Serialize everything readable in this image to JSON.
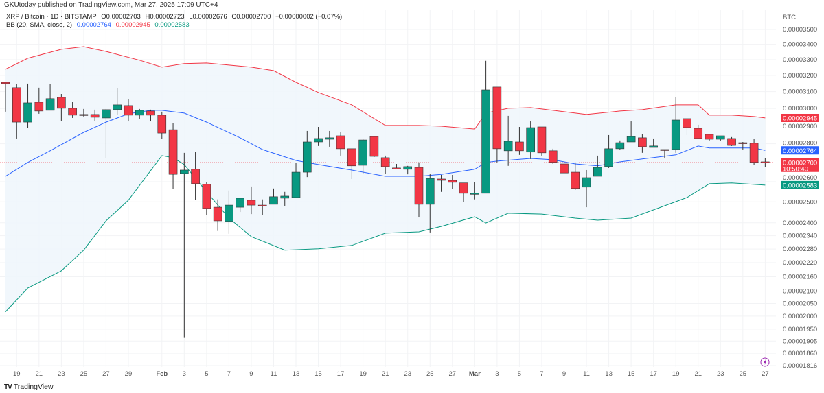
{
  "publisher": "GKUtoday published on TradingView.com, Mar 27, 2025 17:09 UTC+4",
  "legend": {
    "symbol": "XRP / Bitcoin · 1D · BITSTAMP",
    "open": "O0.00002703",
    "high": "H0.00002723",
    "low": "L0.00002676",
    "close": "C0.00002700",
    "change": "−0.00000002 (−0.07%)",
    "bb_label": "BB (20, SMA, close, 2)",
    "bb_basis": "0.00002764",
    "bb_upper": "0.00002945",
    "bb_lower": "0.00002583"
  },
  "logo": "TradingView",
  "colors": {
    "up": "#089981",
    "down": "#f23645",
    "basis": "#2962ff",
    "upper": "#f23645",
    "lower": "#089981",
    "band_fill": "#eef6fc"
  },
  "icons": {
    "lightning": "lightning-icon",
    "logo": "tradingview-logo-icon"
  },
  "chart_data": {
    "type": "candlestick",
    "title": "",
    "y_unit": "BTC",
    "y_scale": "log",
    "ylim": [
      1.816e-05,
      3.5e-05
    ],
    "grid": true,
    "y_ticks": [
      "0.00003500",
      "0.00003400",
      "0.00003300",
      "0.00003200",
      "0.00003100",
      "0.00003000",
      "0.00002900",
      "0.00002800",
      "0.00002600",
      "0.00002500",
      "0.00002400",
      "0.00002340",
      "0.00002280",
      "0.00002220",
      "0.00002160",
      "0.00002100",
      "0.00002050",
      "0.00002000",
      "0.00001950",
      "0.00001905",
      "0.00001860",
      "0.00001816"
    ],
    "x_ticks": [
      {
        "date": "2025-01-19",
        "label": "19"
      },
      {
        "date": "2025-01-21",
        "label": "21"
      },
      {
        "date": "2025-01-23",
        "label": "23"
      },
      {
        "date": "2025-01-25",
        "label": "25"
      },
      {
        "date": "2025-01-27",
        "label": "27"
      },
      {
        "date": "2025-01-29",
        "label": "29"
      },
      {
        "date": "2025-02-01",
        "label": "Feb"
      },
      {
        "date": "2025-02-03",
        "label": "3"
      },
      {
        "date": "2025-02-05",
        "label": "5"
      },
      {
        "date": "2025-02-07",
        "label": "7"
      },
      {
        "date": "2025-02-09",
        "label": "9"
      },
      {
        "date": "2025-02-11",
        "label": "11"
      },
      {
        "date": "2025-02-13",
        "label": "13"
      },
      {
        "date": "2025-02-15",
        "label": "15"
      },
      {
        "date": "2025-02-17",
        "label": "17"
      },
      {
        "date": "2025-02-19",
        "label": "19"
      },
      {
        "date": "2025-02-21",
        "label": "21"
      },
      {
        "date": "2025-02-23",
        "label": "23"
      },
      {
        "date": "2025-02-25",
        "label": "25"
      },
      {
        "date": "2025-02-27",
        "label": "27"
      },
      {
        "date": "2025-03-01",
        "label": "Mar"
      },
      {
        "date": "2025-03-03",
        "label": "3"
      },
      {
        "date": "2025-03-05",
        "label": "5"
      },
      {
        "date": "2025-03-07",
        "label": "7"
      },
      {
        "date": "2025-03-09",
        "label": "9"
      },
      {
        "date": "2025-03-11",
        "label": "11"
      },
      {
        "date": "2025-03-13",
        "label": "13"
      },
      {
        "date": "2025-03-15",
        "label": "15"
      },
      {
        "date": "2025-03-17",
        "label": "17"
      },
      {
        "date": "2025-03-19",
        "label": "19"
      },
      {
        "date": "2025-03-21",
        "label": "21"
      },
      {
        "date": "2025-03-23",
        "label": "23"
      },
      {
        "date": "2025-03-25",
        "label": "25"
      },
      {
        "date": "2025-03-27",
        "label": "27"
      }
    ],
    "price_tags": [
      {
        "value": "0.00002945",
        "kind": "upper"
      },
      {
        "value": "0.00002764",
        "kind": "basis"
      },
      {
        "value": "0.00002700",
        "kind": "last",
        "countdown": "10:50:40"
      },
      {
        "value": "0.00002583",
        "kind": "lower"
      }
    ],
    "last_price": 2.7e-05,
    "candles_fields": [
      "date",
      "open",
      "high",
      "low",
      "close"
    ],
    "candles": [
      [
        "2025-01-18",
        3.157e-05,
        3.157e-05,
        2.981e-05,
        3.149e-05
      ],
      [
        "2025-01-19",
        3.124e-05,
        3.145e-05,
        2.829e-05,
        2.921e-05
      ],
      [
        "2025-01-20",
        2.921e-05,
        3.149e-05,
        2.89e-05,
        3.033e-05
      ],
      [
        "2025-01-21",
        3.037e-05,
        3.124e-05,
        2.969e-05,
        2.985e-05
      ],
      [
        "2025-01-22",
        2.989e-05,
        3.145e-05,
        2.989e-05,
        3.058e-05
      ],
      [
        "2025-01-23",
        3.066e-05,
        3.086e-05,
        2.929e-05,
        3.001e-05
      ],
      [
        "2025-01-24",
        3.001e-05,
        3.037e-05,
        2.945e-05,
        2.961e-05
      ],
      [
        "2025-01-25",
        2.965e-05,
        2.997e-05,
        2.953e-05,
        2.961e-05
      ],
      [
        "2025-01-26",
        2.965e-05,
        2.993e-05,
        2.929e-05,
        2.949e-05
      ],
      [
        "2025-01-27",
        2.945e-05,
        2.997e-05,
        2.721e-05,
        2.993e-05
      ],
      [
        "2025-01-28",
        2.993e-05,
        3.12e-05,
        2.965e-05,
        3.021e-05
      ],
      [
        "2025-01-29",
        3.017e-05,
        3.054e-05,
        2.925e-05,
        2.961e-05
      ],
      [
        "2025-01-30",
        2.961e-05,
        2.997e-05,
        2.941e-05,
        2.989e-05
      ],
      [
        "2025-01-31",
        2.985e-05,
        2.993e-05,
        2.925e-05,
        2.961e-05
      ],
      [
        "2025-02-01",
        2.961e-05,
        2.981e-05,
        2.825e-05,
        2.859e-05
      ],
      [
        "2025-02-02",
        2.878e-05,
        2.914e-05,
        2.563e-05,
        2.638e-05
      ],
      [
        "2025-02-03",
        2.642e-05,
        2.751e-05,
        1.917e-05,
        2.66e-05
      ],
      [
        "2025-02-04",
        2.664e-05,
        2.755e-05,
        2.508e-05,
        2.59e-05
      ],
      [
        "2025-02-05",
        2.587e-05,
        2.6e-05,
        2.435e-05,
        2.468e-05
      ],
      [
        "2025-02-06",
        2.474e-05,
        2.512e-05,
        2.362e-05,
        2.409e-05
      ],
      [
        "2025-02-07",
        2.406e-05,
        2.556e-05,
        2.349e-05,
        2.484e-05
      ],
      [
        "2025-02-08",
        2.474e-05,
        2.518e-05,
        2.451e-05,
        2.518e-05
      ],
      [
        "2025-02-09",
        2.508e-05,
        2.576e-05,
        2.441e-05,
        2.484e-05
      ],
      [
        "2025-02-10",
        2.484e-05,
        2.512e-05,
        2.438e-05,
        2.481e-05
      ],
      [
        "2025-02-11",
        2.488e-05,
        2.566e-05,
        2.488e-05,
        2.525e-05
      ],
      [
        "2025-02-12",
        2.518e-05,
        2.549e-05,
        2.481e-05,
        2.528e-05
      ],
      [
        "2025-02-13",
        2.521e-05,
        2.696e-05,
        2.521e-05,
        2.649e-05
      ],
      [
        "2025-02-14",
        2.649e-05,
        2.871e-05,
        2.624e-05,
        2.81e-05
      ],
      [
        "2025-02-15",
        2.81e-05,
        2.894e-05,
        2.788e-05,
        2.829e-05
      ],
      [
        "2025-02-16",
        2.825e-05,
        2.871e-05,
        2.784e-05,
        2.833e-05
      ],
      [
        "2025-02-17",
        2.844e-05,
        2.863e-05,
        2.736e-05,
        2.773e-05
      ],
      [
        "2025-02-18",
        2.773e-05,
        2.773e-05,
        2.614e-05,
        2.682e-05
      ],
      [
        "2025-02-19",
        2.685e-05,
        2.829e-05,
        2.642e-05,
        2.821e-05
      ],
      [
        "2025-02-20",
        2.84e-05,
        2.84e-05,
        2.729e-05,
        2.732e-05
      ],
      [
        "2025-02-21",
        2.725e-05,
        2.736e-05,
        2.642e-05,
        2.678e-05
      ],
      [
        "2025-02-22",
        2.671e-05,
        2.692e-05,
        2.664e-05,
        2.667e-05
      ],
      [
        "2025-02-23",
        2.664e-05,
        2.682e-05,
        2.638e-05,
        2.678e-05
      ],
      [
        "2025-02-24",
        2.674e-05,
        2.7e-05,
        2.425e-05,
        2.488e-05
      ],
      [
        "2025-02-25",
        2.488e-05,
        2.642e-05,
        2.355e-05,
        2.617e-05
      ],
      [
        "2025-02-26",
        2.614e-05,
        2.635e-05,
        2.549e-05,
        2.607e-05
      ],
      [
        "2025-02-27",
        2.607e-05,
        2.635e-05,
        2.563e-05,
        2.597e-05
      ],
      [
        "2025-02-28",
        2.594e-05,
        2.594e-05,
        2.498e-05,
        2.542e-05
      ],
      [
        "2025-03-01",
        2.538e-05,
        2.597e-05,
        2.512e-05,
        2.542e-05
      ],
      [
        "2025-03-02",
        2.542e-05,
        3.292e-05,
        2.542e-05,
        3.111e-05
      ],
      [
        "2025-03-03",
        3.128e-05,
        3.128e-05,
        2.7e-05,
        2.773e-05
      ],
      [
        "2025-03-04",
        2.762e-05,
        2.957e-05,
        2.682e-05,
        2.814e-05
      ],
      [
        "2025-03-05",
        2.81e-05,
        2.894e-05,
        2.74e-05,
        2.762e-05
      ],
      [
        "2025-03-06",
        2.755e-05,
        2.925e-05,
        2.718e-05,
        2.89e-05
      ],
      [
        "2025-03-07",
        2.894e-05,
        2.894e-05,
        2.736e-05,
        2.751e-05
      ],
      [
        "2025-03-08",
        2.762e-05,
        2.773e-05,
        2.692e-05,
        2.7e-05
      ],
      [
        "2025-03-09",
        2.692e-05,
        2.721e-05,
        2.535e-05,
        2.645e-05
      ],
      [
        "2025-03-10",
        2.649e-05,
        2.7e-05,
        2.559e-05,
        2.566e-05
      ],
      [
        "2025-03-11",
        2.573e-05,
        2.66e-05,
        2.474e-05,
        2.621e-05
      ],
      [
        "2025-03-12",
        2.628e-05,
        2.736e-05,
        2.628e-05,
        2.674e-05
      ],
      [
        "2025-03-13",
        2.678e-05,
        2.848e-05,
        2.671e-05,
        2.773e-05
      ],
      [
        "2025-03-14",
        2.773e-05,
        2.818e-05,
        2.769e-05,
        2.806e-05
      ],
      [
        "2025-03-15",
        2.81e-05,
        2.925e-05,
        2.81e-05,
        2.84e-05
      ],
      [
        "2025-03-16",
        2.833e-05,
        2.855e-05,
        2.751e-05,
        2.784e-05
      ],
      [
        "2025-03-17",
        2.78e-05,
        2.829e-05,
        2.78e-05,
        2.788e-05
      ],
      [
        "2025-03-18",
        2.769e-05,
        2.769e-05,
        2.721e-05,
        2.766e-05
      ],
      [
        "2025-03-19",
        2.769e-05,
        3.066e-05,
        2.751e-05,
        2.933e-05
      ],
      [
        "2025-03-20",
        2.941e-05,
        2.941e-05,
        2.848e-05,
        2.89e-05
      ],
      [
        "2025-03-21",
        2.886e-05,
        2.906e-05,
        2.829e-05,
        2.829e-05
      ],
      [
        "2025-03-22",
        2.852e-05,
        2.852e-05,
        2.814e-05,
        2.825e-05
      ],
      [
        "2025-03-23",
        2.825e-05,
        2.844e-05,
        2.814e-05,
        2.844e-05
      ],
      [
        "2025-03-24",
        2.829e-05,
        2.837e-05,
        2.788e-05,
        2.791e-05
      ],
      [
        "2025-03-25",
        2.806e-05,
        2.81e-05,
        2.769e-05,
        2.803e-05
      ],
      [
        "2025-03-26",
        2.803e-05,
        2.825e-05,
        2.685e-05,
        2.7e-05
      ],
      [
        "2025-03-27",
        2.703e-05,
        2.723e-05,
        2.676e-05,
        2.7e-05
      ]
    ],
    "bb_upper": [
      [
        "2025-01-18",
        3.239e-05
      ],
      [
        "2025-01-20",
        3.309e-05
      ],
      [
        "2025-01-23",
        3.367e-05
      ],
      [
        "2025-01-25",
        3.385e-05
      ],
      [
        "2025-01-27",
        3.353e-05
      ],
      [
        "2025-01-30",
        3.296e-05
      ],
      [
        "2025-02-01",
        3.252e-05
      ],
      [
        "2025-02-03",
        3.274e-05
      ],
      [
        "2025-02-05",
        3.278e-05
      ],
      [
        "2025-02-07",
        3.265e-05
      ],
      [
        "2025-02-09",
        3.252e-05
      ],
      [
        "2025-02-11",
        3.23e-05
      ],
      [
        "2025-02-13",
        3.157e-05
      ],
      [
        "2025-02-15",
        3.095e-05
      ],
      [
        "2025-02-18",
        3.021e-05
      ],
      [
        "2025-02-21",
        2.902e-05
      ],
      [
        "2025-02-24",
        2.902e-05
      ],
      [
        "2025-02-26",
        2.898e-05
      ],
      [
        "2025-03-01",
        2.882e-05
      ],
      [
        "2025-03-02",
        2.973e-05
      ],
      [
        "2025-03-04",
        3.001e-05
      ],
      [
        "2025-03-06",
        3.005e-05
      ],
      [
        "2025-03-09",
        2.981e-05
      ],
      [
        "2025-03-11",
        2.965e-05
      ],
      [
        "2025-03-14",
        2.985e-05
      ],
      [
        "2025-03-16",
        2.993e-05
      ],
      [
        "2025-03-19",
        3.021e-05
      ],
      [
        "2025-03-21",
        3.021e-05
      ],
      [
        "2025-03-22",
        2.961e-05
      ],
      [
        "2025-03-24",
        2.961e-05
      ],
      [
        "2025-03-26",
        2.953e-05
      ],
      [
        "2025-03-27",
        2.945e-05
      ]
    ],
    "bb_basis": [
      [
        "2025-01-18",
        2.628e-05
      ],
      [
        "2025-01-20",
        2.7e-05
      ],
      [
        "2025-01-22",
        2.762e-05
      ],
      [
        "2025-01-25",
        2.863e-05
      ],
      [
        "2025-01-27",
        2.921e-05
      ],
      [
        "2025-01-29",
        2.969e-05
      ],
      [
        "2025-01-31",
        2.989e-05
      ],
      [
        "2025-02-01",
        2.989e-05
      ],
      [
        "2025-02-03",
        2.973e-05
      ],
      [
        "2025-02-05",
        2.921e-05
      ],
      [
        "2025-02-08",
        2.833e-05
      ],
      [
        "2025-02-10",
        2.769e-05
      ],
      [
        "2025-02-13",
        2.71e-05
      ],
      [
        "2025-02-15",
        2.689e-05
      ],
      [
        "2025-02-18",
        2.66e-05
      ],
      [
        "2025-02-21",
        2.628e-05
      ],
      [
        "2025-02-24",
        2.628e-05
      ],
      [
        "2025-02-26",
        2.638e-05
      ],
      [
        "2025-03-01",
        2.664e-05
      ],
      [
        "2025-03-02",
        2.7e-05
      ],
      [
        "2025-03-03",
        2.707e-05
      ],
      [
        "2025-03-06",
        2.721e-05
      ],
      [
        "2025-03-08",
        2.714e-05
      ],
      [
        "2025-03-10",
        2.692e-05
      ],
      [
        "2025-03-12",
        2.682e-05
      ],
      [
        "2025-03-14",
        2.703e-05
      ],
      [
        "2025-03-16",
        2.718e-05
      ],
      [
        "2025-03-19",
        2.74e-05
      ],
      [
        "2025-03-21",
        2.788e-05
      ],
      [
        "2025-03-22",
        2.777e-05
      ],
      [
        "2025-03-26",
        2.777e-05
      ],
      [
        "2025-03-27",
        2.764e-05
      ]
    ],
    "bb_lower": [
      [
        "2025-01-18",
        2.017e-05
      ],
      [
        "2025-01-20",
        2.113e-05
      ],
      [
        "2025-01-23",
        2.185e-05
      ],
      [
        "2025-01-25",
        2.275e-05
      ],
      [
        "2025-01-27",
        2.409e-05
      ],
      [
        "2025-01-29",
        2.508e-05
      ],
      [
        "2025-02-01",
        2.736e-05
      ],
      [
        "2025-02-02",
        2.725e-05
      ],
      [
        "2025-02-03",
        2.689e-05
      ],
      [
        "2025-02-05",
        2.549e-05
      ],
      [
        "2025-02-07",
        2.422e-05
      ],
      [
        "2025-02-09",
        2.336e-05
      ],
      [
        "2025-02-12",
        2.275e-05
      ],
      [
        "2025-02-15",
        2.281e-05
      ],
      [
        "2025-02-18",
        2.296e-05
      ],
      [
        "2025-02-21",
        2.352e-05
      ],
      [
        "2025-02-24",
        2.358e-05
      ],
      [
        "2025-02-26",
        2.383e-05
      ],
      [
        "2025-03-01",
        2.428e-05
      ],
      [
        "2025-03-02",
        2.399e-05
      ],
      [
        "2025-03-04",
        2.445e-05
      ],
      [
        "2025-03-07",
        2.441e-05
      ],
      [
        "2025-03-10",
        2.422e-05
      ],
      [
        "2025-03-12",
        2.412e-05
      ],
      [
        "2025-03-15",
        2.422e-05
      ],
      [
        "2025-03-18",
        2.481e-05
      ],
      [
        "2025-03-20",
        2.521e-05
      ],
      [
        "2025-03-22",
        2.59e-05
      ],
      [
        "2025-03-24",
        2.594e-05
      ],
      [
        "2025-03-27",
        2.583e-05
      ]
    ]
  }
}
